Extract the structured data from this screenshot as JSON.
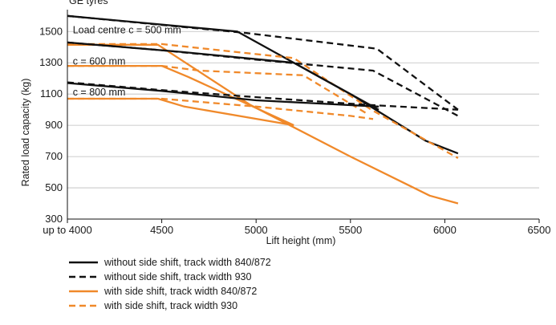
{
  "chart_data": {
    "type": "line",
    "title_partial": "GE tyres",
    "xlabel": "Lift height (mm)",
    "ylabel": "Rated load capacity (kg)",
    "xlim": [
      4000,
      6500
    ],
    "ylim": [
      300,
      1640
    ],
    "x_ticks": [
      4000,
      4500,
      5000,
      5500,
      6000,
      6500
    ],
    "x_tick_labels": [
      "up to 4000",
      "4500",
      "5000",
      "5500",
      "6000",
      "6500"
    ],
    "y_ticks": [
      300,
      500,
      700,
      900,
      1100,
      1300,
      1500
    ],
    "colors": {
      "black": "#111111",
      "orange": "#f0892a"
    },
    "annotations": [
      {
        "text": "Load centre c = 500 mm",
        "x": 4020,
        "y": 1510
      },
      {
        "text": "c = 600 mm",
        "x": 4020,
        "y": 1310
      },
      {
        "text": "c = 800 mm",
        "x": 4020,
        "y": 1110
      }
    ],
    "series": [
      {
        "name": "without side shift, track width 840/872",
        "color": "black",
        "dash": false,
        "load_centre": 500,
        "x": [
          4000,
          4900,
          5500,
          5900,
          6070
        ],
        "y": [
          1600,
          1500,
          1100,
          800,
          720
        ]
      },
      {
        "name": "without side shift, track width 930",
        "color": "black",
        "dash": true,
        "load_centre": 500,
        "x": [
          4000,
          4950,
          5640,
          6070
        ],
        "y": [
          1600,
          1490,
          1390,
          1000
        ]
      },
      {
        "name": "with side shift, track width 840/872",
        "color": "orange",
        "dash": false,
        "load_centre": 500,
        "x": [
          4000,
          4480,
          4970,
          5500,
          5920,
          6070
        ],
        "y": [
          1415,
          1415,
          1030,
          700,
          450,
          400
        ]
      },
      {
        "name": "with side shift, track width 930",
        "color": "orange",
        "dash": true,
        "load_centre": 500,
        "x": [
          4000,
          4500,
          5200,
          5610,
          6070
        ],
        "y": [
          1420,
          1420,
          1330,
          1000,
          690
        ]
      },
      {
        "name": "without side shift, track width 840/872",
        "color": "black",
        "dash": false,
        "load_centre": 600,
        "x": [
          4000,
          4600,
          5200,
          5650
        ],
        "y": [
          1430,
          1370,
          1300,
          1000
        ]
      },
      {
        "name": "without side shift, track width 930",
        "color": "black",
        "dash": true,
        "load_centre": 600,
        "x": [
          4000,
          4500,
          5000,
          5620,
          6070
        ],
        "y": [
          1430,
          1380,
          1320,
          1250,
          960
        ]
      },
      {
        "name": "with side shift, track width 840/872",
        "color": "orange",
        "dash": false,
        "load_centre": 600,
        "x": [
          4000,
          4500,
          4640,
          5200
        ],
        "y": [
          1280,
          1280,
          1210,
          900
        ]
      },
      {
        "name": "with side shift, track width 930",
        "color": "orange",
        "dash": true,
        "load_centre": 600,
        "x": [
          4000,
          4500,
          4700,
          5250,
          5580
        ],
        "y": [
          1280,
          1280,
          1250,
          1220,
          980
        ]
      },
      {
        "name": "without side shift, track width 840/872",
        "color": "black",
        "dash": false,
        "load_centre": 800,
        "x": [
          4000,
          4500,
          5000,
          5650
        ],
        "y": [
          1170,
          1120,
          1060,
          1020
        ]
      },
      {
        "name": "without side shift, track width 930",
        "color": "black",
        "dash": true,
        "load_centre": 800,
        "x": [
          4000,
          4500,
          5000,
          5600,
          6070
        ],
        "y": [
          1175,
          1125,
          1080,
          1030,
          1000
        ]
      },
      {
        "name": "with side shift, track width 840/872",
        "color": "orange",
        "dash": false,
        "load_centre": 800,
        "x": [
          4000,
          4480,
          4620,
          5200
        ],
        "y": [
          1070,
          1070,
          1020,
          900
        ]
      },
      {
        "name": "with side shift, track width 930",
        "color": "orange",
        "dash": true,
        "load_centre": 800,
        "x": [
          4000,
          4500,
          5000,
          5500,
          5620
        ],
        "y": [
          1070,
          1070,
          1020,
          960,
          940
        ]
      }
    ],
    "legend": [
      {
        "label": "without side shift, track width 840/872",
        "color": "black",
        "dash": false
      },
      {
        "label": "without side shift, track width 930",
        "color": "black",
        "dash": true
      },
      {
        "label": "with side shift, track width 840/872",
        "color": "orange",
        "dash": false
      },
      {
        "label": "with side shift, track width 930",
        "color": "orange",
        "dash": true
      }
    ],
    "legend_position": "bottom-left",
    "grid": "horizontal"
  }
}
